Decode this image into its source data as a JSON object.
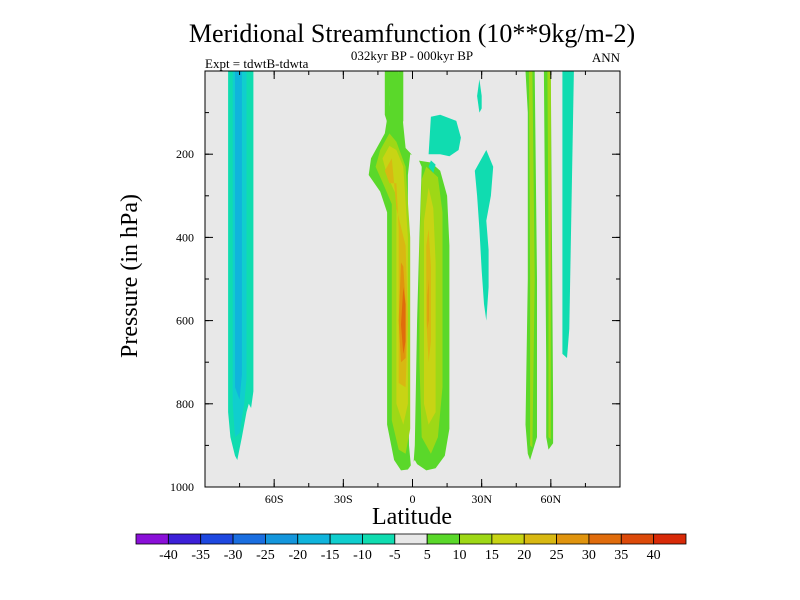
{
  "chart_data": {
    "type": "heatmap",
    "title": "Meridional Streamfunction (10**9kg/m-2)",
    "subtitle": "032kyr BP - 000kyr BP",
    "left_label": "Expt = tdwtB-tdwta",
    "right_label": "ANN",
    "xlabel": "Latitude",
    "ylabel": "Pressure (in hPa)",
    "xlim": [
      -90,
      90
    ],
    "ylim": [
      0,
      1000
    ],
    "y_inverted": true,
    "x_ticks": [
      {
        "value": -60,
        "label": "60S"
      },
      {
        "value": -30,
        "label": "30S"
      },
      {
        "value": 0,
        "label": "0"
      },
      {
        "value": 30,
        "label": "30N"
      },
      {
        "value": 60,
        "label": "60N"
      }
    ],
    "y_ticks": [
      {
        "value": 200,
        "label": "200"
      },
      {
        "value": 400,
        "label": "400"
      },
      {
        "value": 600,
        "label": "600"
      },
      {
        "value": 800,
        "label": "800"
      },
      {
        "value": 1000,
        "label": "1000"
      }
    ],
    "background_color": "#e8e8e8",
    "colorbar": {
      "levels": [
        "-40",
        "-35",
        "-30",
        "-25",
        "-20",
        "-15",
        "-10",
        "-5",
        "5",
        "10",
        "15",
        "20",
        "25",
        "30",
        "35",
        "40"
      ],
      "colors": [
        "#8a10d8",
        "#3c20d8",
        "#1e48e0",
        "#1a6ee0",
        "#1496dc",
        "#10b4dc",
        "#10cece",
        "#10dcb0",
        "#e8e8e8",
        "#5ad82a",
        "#9ed816",
        "#c8d414",
        "#d8b812",
        "#e0940e",
        "#e06c0c",
        "#dc4a0a",
        "#d82a08"
      ]
    },
    "series": [
      {
        "name": "cell-sh-a",
        "level_index": 7,
        "polygon": [
          [
            -80,
            0
          ],
          [
            -80,
            820
          ],
          [
            -79,
            880
          ],
          [
            -77,
            925
          ],
          [
            -76,
            935
          ],
          [
            -74,
            880
          ],
          [
            -72,
            820
          ],
          [
            -71,
            800
          ],
          [
            -70,
            810
          ],
          [
            -69,
            770
          ],
          [
            -69,
            0
          ]
        ]
      },
      {
        "name": "cell-sh-b",
        "level_index": 6,
        "polygon": [
          [
            -78,
            0
          ],
          [
            -78,
            800
          ],
          [
            -77,
            880
          ],
          [
            -75,
            870
          ],
          [
            -73,
            800
          ],
          [
            -72,
            740
          ],
          [
            -72,
            0
          ]
        ]
      },
      {
        "name": "cell-sh-c",
        "level_index": 5,
        "polygon": [
          [
            -77,
            0
          ],
          [
            -77,
            760
          ],
          [
            -75,
            790
          ],
          [
            -74,
            730
          ],
          [
            -74,
            0
          ]
        ]
      },
      {
        "name": "cell-sh-d",
        "level_index": 7,
        "polygon": [
          [
            -71.5,
            0
          ],
          [
            -71.5,
            760
          ],
          [
            -70.5,
            800
          ],
          [
            -69.5,
            780
          ],
          [
            -69.5,
            0
          ]
        ]
      },
      {
        "name": "cell-eq-outer",
        "level_index": 9,
        "polygon": [
          [
            -11,
            0
          ],
          [
            -10,
            80
          ],
          [
            -12,
            150
          ],
          [
            -18,
            210
          ],
          [
            -19,
            250
          ],
          [
            -14,
            290
          ],
          [
            -11,
            340
          ],
          [
            -11,
            850
          ],
          [
            -8,
            935
          ],
          [
            -5,
            960
          ],
          [
            -2,
            958
          ],
          [
            1,
            935
          ],
          [
            2,
            945
          ],
          [
            6,
            960
          ],
          [
            10,
            955
          ],
          [
            14,
            925
          ],
          [
            16,
            860
          ],
          [
            16,
            420
          ],
          [
            15,
            300
          ],
          [
            12,
            240
          ],
          [
            8,
            220
          ],
          [
            2,
            215
          ],
          [
            -3,
            185
          ],
          [
            -4,
            130
          ],
          [
            -6,
            0
          ]
        ]
      },
      {
        "name": "cell-eq-cut",
        "level_index": 8,
        "polygon": [
          [
            -1,
            200
          ],
          [
            2,
            205
          ],
          [
            4,
            230
          ],
          [
            3,
            400
          ],
          [
            2,
            600
          ],
          [
            1,
            900
          ],
          [
            0.3,
            955
          ],
          [
            -0.6,
            955
          ],
          [
            -1.5,
            900
          ],
          [
            -2,
            650
          ],
          [
            -2,
            400
          ],
          [
            -2,
            250
          ]
        ]
      },
      {
        "name": "cell-eq-l1",
        "level_index": 10,
        "polygon": [
          [
            -14,
            190
          ],
          [
            -16,
            230
          ],
          [
            -12,
            280
          ],
          [
            -9,
            320
          ],
          [
            -9,
            840
          ],
          [
            -6,
            910
          ],
          [
            -3,
            920
          ],
          [
            -1,
            860
          ],
          [
            -1,
            540
          ],
          [
            -1,
            400
          ],
          [
            -3,
            230
          ],
          [
            -7,
            170
          ],
          [
            -10,
            150
          ]
        ]
      },
      {
        "name": "cell-eq-l2",
        "level_index": 11,
        "polygon": [
          [
            -13,
            210
          ],
          [
            -11,
            250
          ],
          [
            -7,
            300
          ],
          [
            -7,
            800
          ],
          [
            -4,
            850
          ],
          [
            -2,
            800
          ],
          [
            -2,
            400
          ],
          [
            -4,
            230
          ],
          [
            -7,
            190
          ],
          [
            -10,
            180
          ]
        ]
      },
      {
        "name": "cell-eq-l3",
        "level_index": 12,
        "polygon": [
          [
            -12,
            240
          ],
          [
            -10,
            270
          ],
          [
            -7,
            270
          ],
          [
            -6,
            380
          ],
          [
            -6,
            750
          ],
          [
            -3,
            760
          ],
          [
            -2,
            600
          ],
          [
            -3,
            420
          ],
          [
            -7,
            330
          ],
          [
            -9,
            210
          ]
        ]
      },
      {
        "name": "cell-eq-l4",
        "level_index": 13,
        "polygon": [
          [
            -5,
            460
          ],
          [
            -6,
            600
          ],
          [
            -5,
            700
          ],
          [
            -3,
            690
          ],
          [
            -3,
            560
          ],
          [
            -4,
            470
          ]
        ]
      },
      {
        "name": "cell-eq-l5",
        "level_index": 14,
        "polygon": [
          [
            -4,
            520
          ],
          [
            -5,
            610
          ],
          [
            -4,
            680
          ],
          [
            -3,
            650
          ],
          [
            -3,
            560
          ]
        ]
      },
      {
        "name": "cell-eq-r1",
        "level_index": 10,
        "polygon": [
          [
            6,
            230
          ],
          [
            11,
            255
          ],
          [
            13,
            340
          ],
          [
            13,
            760
          ],
          [
            11,
            880
          ],
          [
            8,
            920
          ],
          [
            4,
            880
          ],
          [
            3,
            700
          ],
          [
            3,
            430
          ],
          [
            4,
            260
          ]
        ]
      },
      {
        "name": "cell-eq-r2",
        "level_index": 11,
        "polygon": [
          [
            7,
            280
          ],
          [
            9,
            330
          ],
          [
            10,
            460
          ],
          [
            10,
            820
          ],
          [
            7,
            850
          ],
          [
            5,
            800
          ],
          [
            5,
            360
          ]
        ]
      },
      {
        "name": "cell-eq-r3",
        "level_index": 12,
        "polygon": [
          [
            7,
            380
          ],
          [
            8,
            470
          ],
          [
            8,
            650
          ],
          [
            7,
            700
          ],
          [
            6,
            600
          ],
          [
            6,
            420
          ]
        ]
      },
      {
        "name": "cell-eq-r4",
        "level_index": 13,
        "polygon": [
          [
            7,
            500
          ],
          [
            7,
            600
          ],
          [
            6.5,
            620
          ],
          [
            6.5,
            540
          ]
        ]
      },
      {
        "name": "cell-ne-a",
        "level_index": 7,
        "polygon": [
          [
            7,
            200
          ],
          [
            12,
            200
          ],
          [
            16,
            205
          ],
          [
            20,
            190
          ],
          [
            21,
            160
          ],
          [
            19,
            120
          ],
          [
            12,
            105
          ],
          [
            8,
            110
          ]
        ]
      },
      {
        "name": "cell-ne-b",
        "level_index": 7,
        "polygon": [
          [
            8,
            215
          ],
          [
            10,
            225
          ],
          [
            9,
            245
          ],
          [
            7,
            230
          ]
        ]
      },
      {
        "name": "cell-ne-c",
        "level_index": 7,
        "polygon": [
          [
            29,
            20
          ],
          [
            30,
            60
          ],
          [
            30,
            90
          ],
          [
            29,
            100
          ],
          [
            28,
            60
          ]
        ]
      },
      {
        "name": "cell-ne-d",
        "level_index": 7,
        "polygon": [
          [
            27,
            240
          ],
          [
            32,
            190
          ],
          [
            35,
            230
          ],
          [
            34,
            300
          ],
          [
            32,
            360
          ],
          [
            33,
            430
          ],
          [
            33,
            520
          ],
          [
            32,
            600
          ],
          [
            31,
            560
          ],
          [
            30,
            480
          ],
          [
            29,
            380
          ],
          [
            28,
            300
          ]
        ]
      },
      {
        "name": "cell-tr-1",
        "level_index": 9,
        "polygon": [
          [
            -12,
            0
          ],
          [
            -12,
            105
          ],
          [
            -10,
            140
          ],
          [
            -10,
            0
          ]
        ]
      },
      {
        "name": "cell-tr-2",
        "level_index": 9,
        "polygon": [
          [
            -6,
            0
          ],
          [
            -6,
            120
          ],
          [
            -5,
            140
          ],
          [
            -4,
            120
          ],
          [
            -4,
            0
          ]
        ]
      },
      {
        "name": "cell-mid-a",
        "level_index": 9,
        "polygon": [
          [
            49,
            0
          ],
          [
            50,
            100
          ],
          [
            50,
            500
          ],
          [
            49,
            850
          ],
          [
            50,
            920
          ],
          [
            51,
            935
          ],
          [
            54,
            880
          ],
          [
            54,
            500
          ],
          [
            53,
            0
          ]
        ]
      },
      {
        "name": "cell-mid-b",
        "level_index": 9,
        "polygon": [
          [
            57,
            0
          ],
          [
            58,
            700
          ],
          [
            58,
            880
          ],
          [
            59,
            910
          ],
          [
            61,
            895
          ],
          [
            61,
            800
          ],
          [
            60,
            0
          ]
        ]
      },
      {
        "name": "cell-mid-c",
        "level_index": 7,
        "polygon": [
          [
            65,
            0
          ],
          [
            65,
            680
          ],
          [
            67,
            690
          ],
          [
            68,
            620
          ],
          [
            70,
            0
          ]
        ]
      },
      {
        "name": "cell-mid-d",
        "level_index": 10,
        "polygon": [
          [
            50.5,
            0
          ],
          [
            51,
            500
          ],
          [
            51,
            900
          ],
          [
            52,
            905
          ],
          [
            53,
            500
          ],
          [
            52,
            0
          ]
        ]
      },
      {
        "name": "cell-mid-e",
        "level_index": 10,
        "polygon": [
          [
            58.5,
            0
          ],
          [
            59,
            400
          ],
          [
            59,
            880
          ],
          [
            60,
            885
          ],
          [
            60,
            0
          ]
        ]
      }
    ]
  }
}
